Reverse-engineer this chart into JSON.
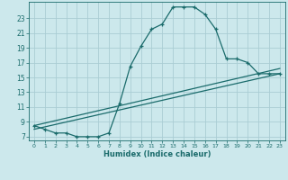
{
  "xlabel": "Humidex (Indice chaleur)",
  "bg_color": "#cce8ec",
  "grid_color": "#aacdd4",
  "line_color": "#1a6b6b",
  "xlim": [
    -0.5,
    23.5
  ],
  "ylim": [
    6.5,
    25.2
  ],
  "xticks": [
    0,
    1,
    2,
    3,
    4,
    5,
    6,
    7,
    8,
    9,
    10,
    11,
    12,
    13,
    14,
    15,
    16,
    17,
    18,
    19,
    20,
    21,
    22,
    23
  ],
  "yticks": [
    7,
    9,
    11,
    13,
    15,
    17,
    19,
    21,
    23
  ],
  "main_x": [
    0,
    1,
    2,
    3,
    4,
    5,
    6,
    7,
    8,
    9,
    10,
    11,
    12,
    13,
    14,
    15,
    16,
    17,
    18,
    19,
    20,
    21,
    22,
    23
  ],
  "main_y": [
    8.5,
    8.0,
    7.5,
    7.5,
    7.0,
    7.0,
    7.0,
    7.5,
    11.5,
    16.5,
    19.2,
    21.5,
    22.2,
    24.5,
    24.5,
    24.5,
    23.5,
    21.5,
    17.5,
    17.5,
    17.0,
    15.5,
    15.5,
    15.5
  ],
  "line1_x": [
    0,
    23
  ],
  "line1_y": [
    8.0,
    15.5
  ],
  "line2_x": [
    0,
    23
  ],
  "line2_y": [
    8.5,
    16.2
  ]
}
